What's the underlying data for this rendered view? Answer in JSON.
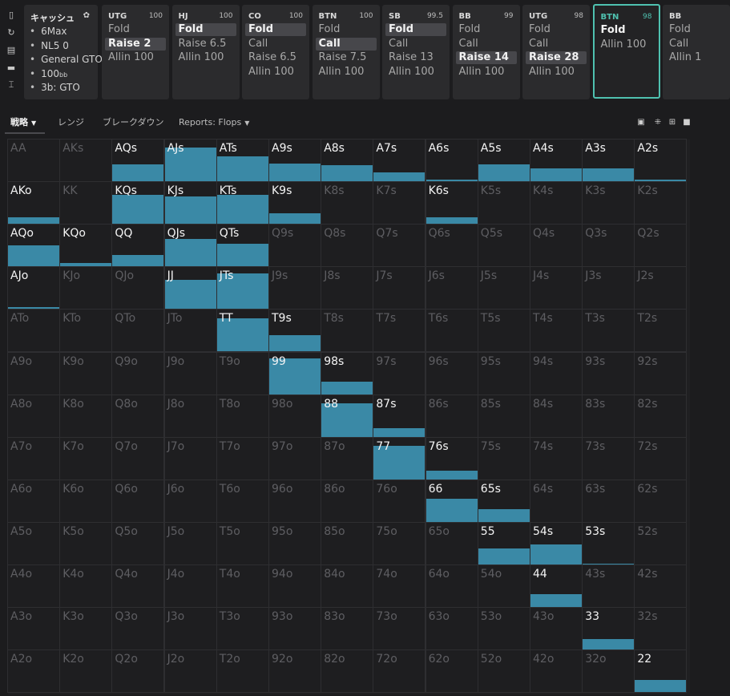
{
  "sidebar": {
    "icons": [
      "bookmark-icon",
      "refresh-icon",
      "save-icon",
      "car-icon",
      "text-cursor-icon"
    ]
  },
  "settings": {
    "title": "キャッシュ",
    "items": [
      {
        "text": "6Max",
        "suffix": ""
      },
      {
        "text": "NL5 0",
        "suffix": ""
      },
      {
        "text": "General GTO",
        "suffix": ""
      },
      {
        "text": "100",
        "suffix": "bb"
      },
      {
        "text": "3b: GTO",
        "suffix": ""
      }
    ]
  },
  "positions": [
    {
      "name": "UTG",
      "stack": "100",
      "actions": [
        "Fold",
        "Raise 2",
        "Allin 100"
      ],
      "selected": 1,
      "active": false
    },
    {
      "name": "HJ",
      "stack": "100",
      "actions": [
        "Fold",
        "Raise 6.5",
        "Allin 100"
      ],
      "selected": 0,
      "active": false
    },
    {
      "name": "CO",
      "stack": "100",
      "actions": [
        "Fold",
        "Call",
        "Raise 6.5",
        "Allin 100"
      ],
      "selected": 0,
      "active": false
    },
    {
      "name": "BTN",
      "stack": "100",
      "actions": [
        "Fold",
        "Call",
        "Raise 7.5",
        "Allin 100"
      ],
      "selected": 1,
      "active": false
    },
    {
      "name": "SB",
      "stack": "99.5",
      "actions": [
        "Fold",
        "Call",
        "Raise 13",
        "Allin 100"
      ],
      "selected": 0,
      "active": false
    },
    {
      "name": "BB",
      "stack": "99",
      "actions": [
        "Fold",
        "Call",
        "Raise 14",
        "Allin 100"
      ],
      "selected": 2,
      "active": false
    },
    {
      "name": "UTG",
      "stack": "98",
      "actions": [
        "Fold",
        "Call",
        "Raise 28",
        "Allin 100"
      ],
      "selected": 2,
      "active": false
    },
    {
      "name": "BTN",
      "stack": "98",
      "actions": [
        "Fold",
        "Allin 100"
      ],
      "selected": 0,
      "active": true
    },
    {
      "name": "BB",
      "stack": "",
      "actions": [
        "Fold",
        "Call",
        "Allin 1"
      ],
      "selected": -1,
      "active": false
    }
  ],
  "tabs": [
    {
      "label": "戦略",
      "dropdown": true,
      "active": true
    },
    {
      "label": "レンジ",
      "dropdown": false,
      "active": false
    },
    {
      "label": "ブレークダウン",
      "dropdown": false,
      "active": false
    },
    {
      "label": "Reports: Flops",
      "dropdown": true,
      "active": false
    }
  ],
  "bar_color": "#3a89a6",
  "grid": {
    "rows": [
      [
        "AA",
        "AKs",
        "AQs",
        "AJs",
        "ATs",
        "A9s",
        "A8s",
        "A7s",
        "A6s",
        "A5s",
        "A4s",
        "A3s",
        "A2s"
      ],
      [
        "AKo",
        "KK",
        "KQs",
        "KJs",
        "KTs",
        "K9s",
        "K8s",
        "K7s",
        "K6s",
        "K5s",
        "K4s",
        "K3s",
        "K2s"
      ],
      [
        "AQo",
        "KQo",
        "QQ",
        "QJs",
        "QTs",
        "Q9s",
        "Q8s",
        "Q7s",
        "Q6s",
        "Q5s",
        "Q4s",
        "Q3s",
        "Q2s"
      ],
      [
        "AJo",
        "KJo",
        "QJo",
        "JJ",
        "JTs",
        "J9s",
        "J8s",
        "J7s",
        "J6s",
        "J5s",
        "J4s",
        "J3s",
        "J2s"
      ],
      [
        "ATo",
        "KTo",
        "QTo",
        "JTo",
        "TT",
        "T9s",
        "T8s",
        "T7s",
        "T6s",
        "T5s",
        "T4s",
        "T3s",
        "T2s"
      ],
      [
        "A9o",
        "K9o",
        "Q9o",
        "J9o",
        "T9o",
        "99",
        "98s",
        "97s",
        "96s",
        "95s",
        "94s",
        "93s",
        "92s"
      ],
      [
        "A8o",
        "K8o",
        "Q8o",
        "J8o",
        "T8o",
        "98o",
        "88",
        "87s",
        "86s",
        "85s",
        "84s",
        "83s",
        "82s"
      ],
      [
        "A7o",
        "K7o",
        "Q7o",
        "J7o",
        "T7o",
        "97o",
        "87o",
        "77",
        "76s",
        "75s",
        "74s",
        "73s",
        "72s"
      ],
      [
        "A6o",
        "K6o",
        "Q6o",
        "J6o",
        "T6o",
        "96o",
        "86o",
        "76o",
        "66",
        "65s",
        "64s",
        "63s",
        "62s"
      ],
      [
        "A5o",
        "K5o",
        "Q5o",
        "J5o",
        "T5o",
        "95o",
        "85o",
        "75o",
        "65o",
        "55",
        "54s",
        "53s",
        "52s"
      ],
      [
        "A4o",
        "K4o",
        "Q4o",
        "J4o",
        "T4o",
        "94o",
        "84o",
        "74o",
        "64o",
        "54o",
        "44",
        "43s",
        "42s"
      ],
      [
        "A3o",
        "K3o",
        "Q3o",
        "J3o",
        "T3o",
        "93o",
        "83o",
        "73o",
        "63o",
        "53o",
        "43o",
        "33",
        "32s"
      ],
      [
        "A2o",
        "K2o",
        "Q2o",
        "J2o",
        "T2o",
        "92o",
        "82o",
        "72o",
        "62o",
        "52o",
        "42o",
        "32o",
        "22"
      ]
    ],
    "allin_frequency": {
      "AQs": 0.4,
      "AJs": 0.8,
      "ATs": 0.6,
      "A9s": 0.42,
      "A8s": 0.38,
      "A7s": 0.22,
      "A6s": 0.04,
      "A5s": 0.4,
      "A4s": 0.3,
      "A3s": 0.3,
      "A2s": 0.04,
      "AKo": 0.16,
      "KQs": 0.7,
      "KJs": 0.65,
      "KTs": 0.7,
      "K9s": 0.25,
      "K6s": 0.15,
      "AQo": 0.5,
      "KQo": 0.08,
      "QQ": 0.28,
      "QJs": 0.65,
      "QTs": 0.55,
      "AJo": 0.04,
      "JJ": 0.7,
      "JTs": 0.85,
      "TT": 0.8,
      "T9s": 0.4,
      "99": 0.85,
      "98s": 0.3,
      "88": 0.8,
      "87s": 0.2,
      "77": 0.8,
      "76s": 0.2,
      "66": 0.55,
      "65s": 0.3,
      "55": 0.38,
      "54s": 0.48,
      "53s": 0.02,
      "44": 0.3,
      "33": 0.25,
      "22": 0.3
    }
  }
}
